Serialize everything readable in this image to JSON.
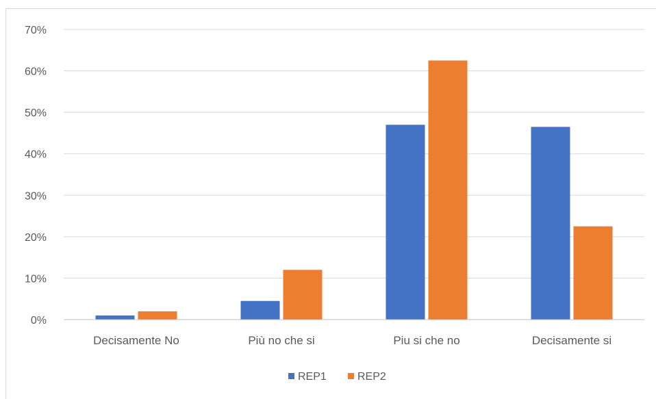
{
  "chart_data": {
    "type": "bar",
    "categories": [
      "Decisamente No",
      "Più no che si",
      "Piu si che no",
      "Decisamente si"
    ],
    "series": [
      {
        "name": "REP1",
        "values": [
          1,
          4.5,
          47,
          46.5
        ],
        "color": "#4472c4"
      },
      {
        "name": "REP2",
        "values": [
          2,
          12,
          62.5,
          22.5
        ],
        "color": "#ed7d31"
      }
    ],
    "y_ticks": [
      "0%",
      "10%",
      "20%",
      "30%",
      "40%",
      "50%",
      "60%",
      "70%"
    ],
    "ylim": [
      0,
      70
    ],
    "grid": true,
    "legend_position": "bottom"
  }
}
